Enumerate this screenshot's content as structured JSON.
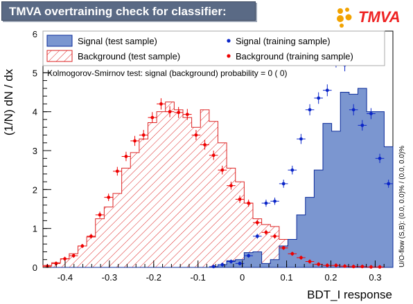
{
  "title": "TMVA overtraining check for classifier: BDT_I",
  "logo_text": "TMVA",
  "ks_text": "Kolmogorov-Smirnov test: signal (background) probability =    0 (    0)",
  "side_text": "U/O-flow (S,B): (0.0, 0.0)% / (0.0, 0.0)%",
  "legend": [
    {
      "label": "Signal (test sample)",
      "style": "fill"
    },
    {
      "label": "Background (test sample)",
      "style": "hatch"
    },
    {
      "label": "Signal (training sample)",
      "style": "marker-blue"
    },
    {
      "label": "Background (training sample)",
      "style": "marker-red"
    }
  ],
  "colors": {
    "signal_fill": "#7b96d0",
    "signal_line": "#0a2a9a",
    "signal_marker": "#0a25c8",
    "background_line": "#dd2222",
    "background_marker": "#ee0000",
    "title_bg": "#5a6a85"
  },
  "chart_data": {
    "type": "histogram",
    "xlabel": "BDT_I response",
    "ylabel": "(1/N) dN / dx",
    "xlim": [
      -0.45,
      0.34
    ],
    "ylim": [
      0,
      6.0
    ],
    "xticks": [
      -0.4,
      -0.3,
      -0.2,
      -0.1,
      0,
      0.1,
      0.2,
      0.3
    ],
    "xtick_labels": [
      "-0.4",
      "-0.3",
      "-0.2",
      "-0.1",
      "0",
      "0.1",
      "0.2",
      "0.3"
    ],
    "yticks": [
      0,
      1,
      2,
      3,
      4,
      5,
      6
    ],
    "ytick_labels": [
      "0",
      "1",
      "2",
      "3",
      "4",
      "5",
      "6"
    ],
    "bin_edges_start": -0.45,
    "bin_width": 0.01975,
    "signal_test": [
      0,
      0,
      0,
      0,
      0,
      0,
      0,
      0,
      0,
      0,
      0,
      0,
      0,
      0,
      0,
      0,
      0,
      0,
      0,
      0,
      0.07,
      0.17,
      0.2,
      0.38,
      0.4,
      0.1,
      0.2,
      0.55,
      0.72,
      1.35,
      1.8,
      2.5,
      3.7,
      3.5,
      4.5,
      4.45,
      4.6,
      4.0,
      4.0,
      3.1,
      2.3,
      1.8,
      1.15,
      0.75,
      0.62,
      0.15
    ],
    "signal_train": [
      0,
      0,
      0,
      0,
      0,
      0,
      0,
      0,
      0,
      0,
      0,
      0,
      0,
      0,
      0,
      0,
      0,
      0,
      0,
      0.02,
      0.07,
      0.15,
      0.1,
      0.3,
      0.8,
      1.65,
      1.7,
      2.15,
      2.5,
      3.3,
      4.05,
      4.35,
      4.55,
      5.3,
      5.2,
      4.05,
      3.65,
      3.95,
      2.8,
      2.15,
      1.8,
      1.3,
      1.0,
      0.95,
      0.4,
      0.15
    ],
    "background_test": [
      0.05,
      0.12,
      0.22,
      0.35,
      0.55,
      0.78,
      1.25,
      1.55,
      1.9,
      2.55,
      2.95,
      3.3,
      3.72,
      4.0,
      4.25,
      4.05,
      3.85,
      3.6,
      4.05,
      3.75,
      3.2,
      2.55,
      2.2,
      1.65,
      1.25,
      1.1,
      1.05,
      0.72,
      0.4,
      0.25,
      0.15,
      0.1,
      0.08,
      0.05,
      0.03,
      0.02,
      0.02,
      0.01,
      0.01,
      0,
      0,
      0,
      0,
      0,
      0,
      0
    ],
    "background_train": [
      0.03,
      0.1,
      0.22,
      0.3,
      0.55,
      0.8,
      1.35,
      1.8,
      2.47,
      2.85,
      3.25,
      3.4,
      3.85,
      4.2,
      4.0,
      3.98,
      3.93,
      3.4,
      3.15,
      2.88,
      2.5,
      2.1,
      1.75,
      1.65,
      1.15,
      0.9,
      0.8,
      0.5,
      0.35,
      0.25,
      0.15,
      0.08,
      0.05,
      0.05,
      0.03,
      0.02,
      0.02,
      0.01,
      0.01,
      0,
      0,
      0,
      0,
      0,
      0,
      0
    ]
  }
}
